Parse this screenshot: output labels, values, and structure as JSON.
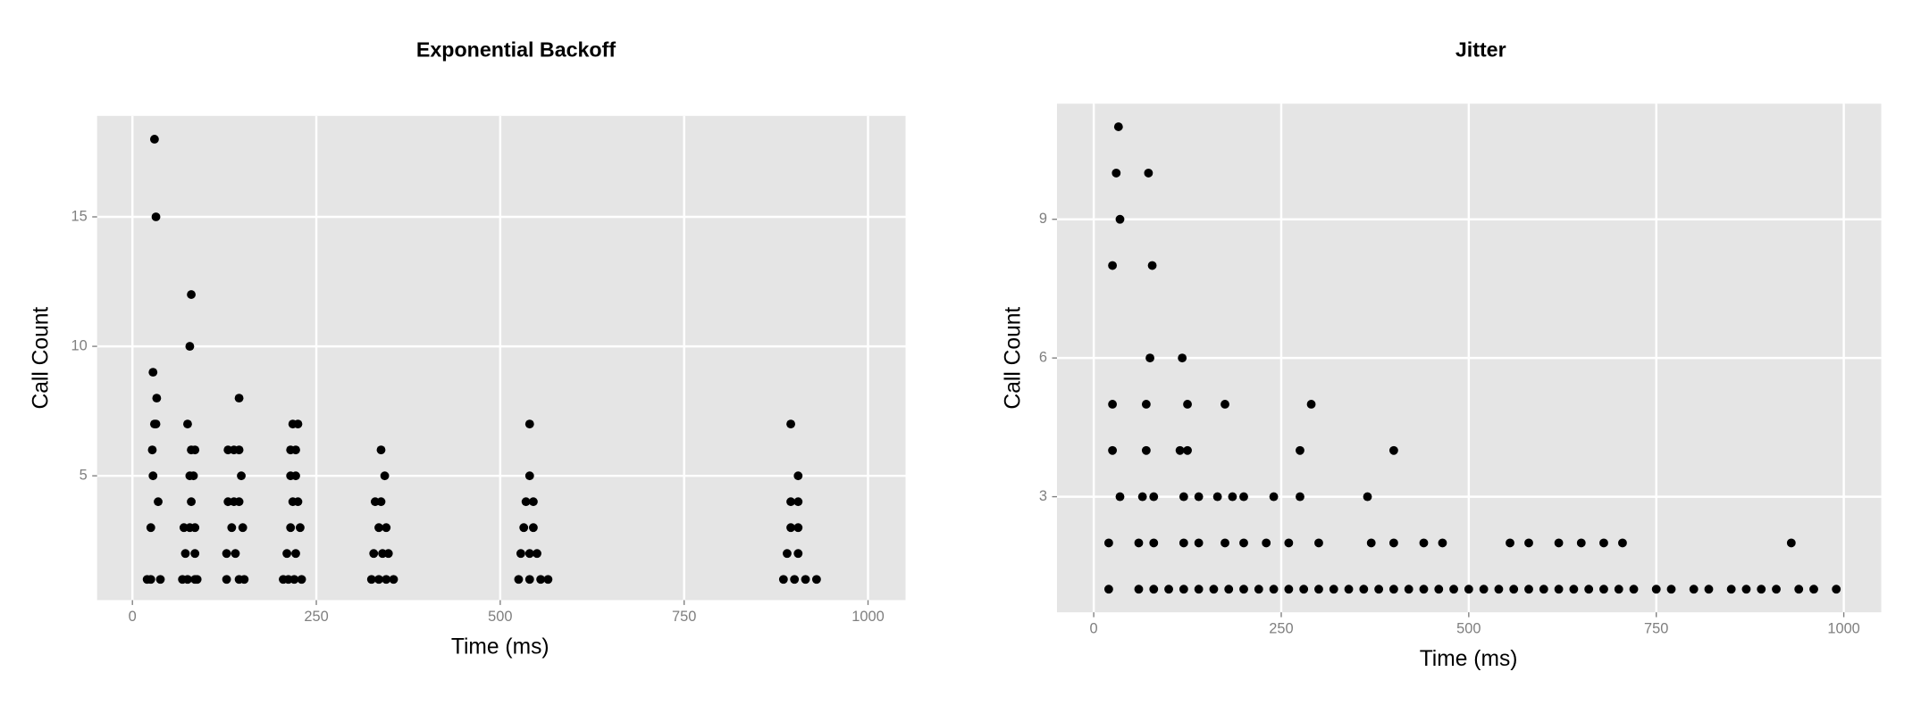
{
  "chart_data": [
    {
      "type": "scatter",
      "title": "Exponential Backoff",
      "x_label": "Time (ms)",
      "y_label": "Call Count",
      "color": "#000000",
      "grid": true,
      "xlim": [
        -48,
        1051
      ],
      "ylim": [
        0.2,
        18.9
      ],
      "xticks": [
        0,
        250,
        500,
        750,
        1000
      ],
      "yticks": [
        5,
        10,
        15
      ],
      "x": [
        30,
        32,
        28,
        33,
        30,
        32,
        27,
        28,
        35,
        25,
        20,
        25,
        38,
        80,
        78,
        75,
        80,
        85,
        78,
        83,
        80,
        70,
        78,
        85,
        72,
        85,
        68,
        75,
        85,
        88,
        145,
        130,
        138,
        145,
        148,
        130,
        138,
        145,
        135,
        150,
        128,
        140,
        128,
        145,
        152,
        218,
        225,
        215,
        222,
        215,
        222,
        218,
        225,
        215,
        228,
        210,
        222,
        205,
        212,
        220,
        230,
        338,
        343,
        330,
        338,
        335,
        345,
        328,
        340,
        348,
        325,
        335,
        345,
        355,
        540,
        540,
        535,
        545,
        532,
        545,
        528,
        540,
        550,
        525,
        540,
        555,
        565,
        895,
        905,
        895,
        905,
        895,
        905,
        890,
        905,
        885,
        900,
        915,
        930
      ],
      "y": [
        18,
        15,
        9,
        8,
        7,
        7,
        6,
        5,
        4,
        3,
        1,
        1,
        1,
        12,
        10,
        7,
        6,
        6,
        5,
        5,
        4,
        3,
        3,
        3,
        2,
        2,
        1,
        1,
        1,
        1,
        8,
        6,
        6,
        6,
        5,
        4,
        4,
        4,
        3,
        3,
        2,
        2,
        1,
        1,
        1,
        7,
        7,
        6,
        6,
        5,
        5,
        4,
        4,
        3,
        3,
        2,
        2,
        1,
        1,
        1,
        1,
        6,
        5,
        4,
        4,
        3,
        3,
        2,
        2,
        2,
        1,
        1,
        1,
        1,
        7,
        5,
        4,
        4,
        3,
        3,
        2,
        2,
        2,
        1,
        1,
        1,
        1,
        7,
        5,
        4,
        4,
        3,
        3,
        2,
        2,
        1,
        1,
        1,
        1
      ]
    },
    {
      "type": "scatter",
      "title": "Jitter",
      "x_label": "Time (ms)",
      "y_label": "Call Count",
      "color": "#000000",
      "grid": true,
      "xlim": [
        -49,
        1050
      ],
      "ylim": [
        0.5,
        11.5
      ],
      "xticks": [
        0,
        250,
        500,
        750,
        1000
      ],
      "yticks": [
        3,
        6,
        9
      ],
      "x": [
        33,
        30,
        73,
        35,
        25,
        78,
        75,
        118,
        25,
        70,
        125,
        175,
        290,
        25,
        70,
        115,
        125,
        275,
        400,
        35,
        65,
        80,
        120,
        140,
        165,
        185,
        200,
        240,
        275,
        365,
        20,
        60,
        80,
        120,
        140,
        175,
        200,
        230,
        260,
        300,
        370,
        400,
        440,
        465,
        555,
        580,
        620,
        650,
        680,
        705,
        930,
        20,
        60,
        80,
        100,
        120,
        140,
        160,
        180,
        200,
        220,
        240,
        260,
        280,
        300,
        320,
        340,
        360,
        380,
        400,
        420,
        440,
        460,
        480,
        500,
        520,
        540,
        560,
        580,
        600,
        620,
        640,
        660,
        680,
        700,
        720,
        750,
        770,
        800,
        820,
        850,
        870,
        890,
        910,
        940,
        960,
        990
      ],
      "y": [
        11,
        10,
        10,
        9,
        8,
        8,
        6,
        6,
        5,
        5,
        5,
        5,
        5,
        4,
        4,
        4,
        4,
        4,
        4,
        3,
        3,
        3,
        3,
        3,
        3,
        3,
        3,
        3,
        3,
        3,
        2,
        2,
        2,
        2,
        2,
        2,
        2,
        2,
        2,
        2,
        2,
        2,
        2,
        2,
        2,
        2,
        2,
        2,
        2,
        2,
        2,
        1,
        1,
        1,
        1,
        1,
        1,
        1,
        1,
        1,
        1,
        1,
        1,
        1,
        1,
        1,
        1,
        1,
        1,
        1,
        1,
        1,
        1,
        1,
        1,
        1,
        1,
        1,
        1,
        1,
        1,
        1,
        1,
        1,
        1,
        1,
        1,
        1,
        1,
        1,
        1,
        1,
        1,
        1,
        1,
        1,
        1
      ]
    }
  ]
}
